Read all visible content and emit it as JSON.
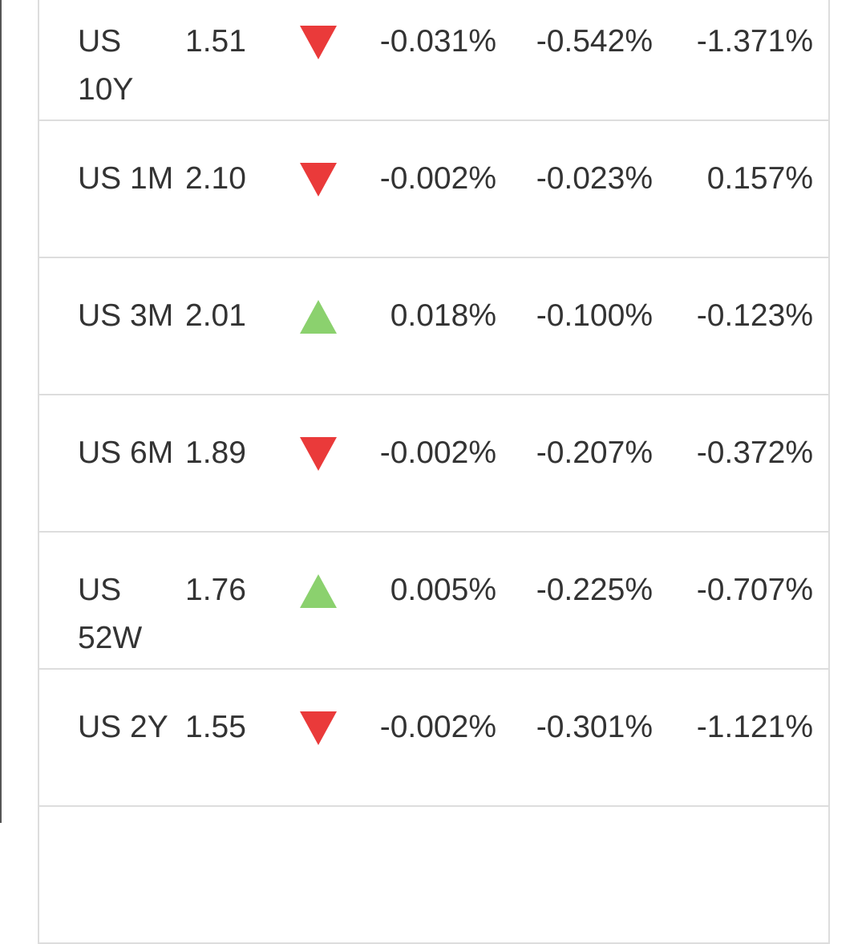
{
  "rows": [
    {
      "name": "US 10Y",
      "value": "1.51",
      "direction": "down",
      "c1": "-0.031%",
      "c2": "-0.542%",
      "c3": "-1.371%"
    },
    {
      "name": "US 1M",
      "value": "2.10",
      "direction": "down",
      "c1": "-0.002%",
      "c2": "-0.023%",
      "c3": "0.157%"
    },
    {
      "name": "US 3M",
      "value": "2.01",
      "direction": "up",
      "c1": "0.018%",
      "c2": "-0.100%",
      "c3": "-0.123%"
    },
    {
      "name": "US 6M",
      "value": "1.89",
      "direction": "down",
      "c1": "-0.002%",
      "c2": "-0.207%",
      "c3": "-0.372%"
    },
    {
      "name": "US 52W",
      "value": "1.76",
      "direction": "up",
      "c1": "0.005%",
      "c2": "-0.225%",
      "c3": "-0.707%"
    },
    {
      "name": "US 2Y",
      "value": "1.55",
      "direction": "down",
      "c1": "-0.002%",
      "c2": "-0.301%",
      "c3": "-1.121%"
    }
  ],
  "colors": {
    "down": "#ea3a3a",
    "up": "#8bd16e",
    "text": "#333333",
    "border": "#dddddd"
  },
  "icons": {
    "down": "triangle-down-icon",
    "up": "triangle-up-icon"
  }
}
